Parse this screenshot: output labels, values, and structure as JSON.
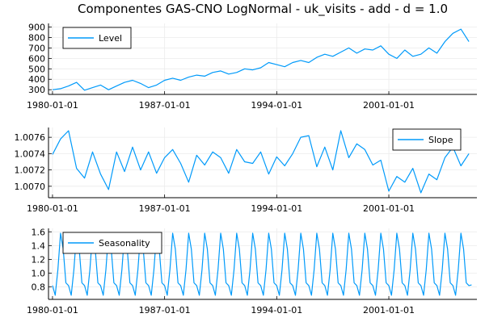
{
  "figure": {
    "title": "Componentes GAS-CNO LogNormal - uk_visits - add - d = 1.0"
  },
  "colors": {
    "line": "#009AFA",
    "grid": "#ebebeb",
    "axis": "#000000",
    "legend_border": "#000000"
  },
  "chart_data": [
    {
      "type": "line",
      "title": "Componentes GAS-CNO LogNormal - uk_visits - add - d = 1.0",
      "xlabel": "",
      "ylabel": "",
      "x_ticks": [
        "1980-01-01",
        "1987-01-01",
        "1994-01-01",
        "2001-01-01"
      ],
      "xlim": [
        1979.75,
        2006.5
      ],
      "y_ticks": [
        300,
        400,
        500,
        600,
        700,
        800,
        900
      ],
      "ylim": [
        255,
        935
      ],
      "grid": true,
      "legend": "top-left",
      "series": [
        {
          "name": "Level",
          "x": [
            1980.0,
            1980.5,
            1981.0,
            1981.5,
            1982.0,
            1982.5,
            1983.0,
            1983.5,
            1984.0,
            1984.5,
            1985.0,
            1985.5,
            1986.0,
            1986.5,
            1987.0,
            1987.5,
            1988.0,
            1988.5,
            1989.0,
            1989.5,
            1990.0,
            1990.5,
            1991.0,
            1991.5,
            1992.0,
            1992.5,
            1993.0,
            1993.5,
            1994.0,
            1994.5,
            1995.0,
            1995.5,
            1996.0,
            1996.5,
            1997.0,
            1997.5,
            1998.0,
            1998.5,
            1999.0,
            1999.5,
            2000.0,
            2000.5,
            2001.0,
            2001.5,
            2002.0,
            2002.5,
            2003.0,
            2003.5,
            2004.0,
            2004.5,
            2005.0,
            2005.5,
            2006.0
          ],
          "values": [
            300,
            310,
            335,
            370,
            295,
            320,
            345,
            300,
            335,
            370,
            390,
            360,
            320,
            345,
            390,
            410,
            390,
            420,
            440,
            430,
            465,
            480,
            450,
            465,
            500,
            490,
            510,
            560,
            540,
            520,
            560,
            580,
            560,
            610,
            640,
            620,
            660,
            700,
            650,
            690,
            680,
            720,
            640,
            600,
            680,
            620,
            640,
            700,
            650,
            760,
            840,
            880,
            760
          ]
        }
      ]
    },
    {
      "type": "line",
      "title": "",
      "xlabel": "",
      "ylabel": "",
      "x_ticks": [
        "1980-01-01",
        "1987-01-01",
        "1994-01-01",
        "2001-01-01"
      ],
      "xlim": [
        1979.75,
        2006.5
      ],
      "y_ticks": [
        1.007,
        1.0072,
        1.0074,
        1.0076
      ],
      "ylim": [
        1.00686,
        1.00772
      ],
      "grid": true,
      "legend": "top-right",
      "series": [
        {
          "name": "Slope",
          "x": [
            1980.0,
            1980.5,
            1981.0,
            1981.5,
            1982.0,
            1982.5,
            1983.0,
            1983.5,
            1984.0,
            1984.5,
            1985.0,
            1985.5,
            1986.0,
            1986.5,
            1987.0,
            1987.5,
            1988.0,
            1988.5,
            1989.0,
            1989.5,
            1990.0,
            1990.5,
            1991.0,
            1991.5,
            1992.0,
            1992.5,
            1993.0,
            1993.5,
            1994.0,
            1994.5,
            1995.0,
            1995.5,
            1996.0,
            1996.5,
            1997.0,
            1997.5,
            1998.0,
            1998.5,
            1999.0,
            1999.5,
            2000.0,
            2000.5,
            2001.0,
            2001.5,
            2002.0,
            2002.5,
            2003.0,
            2003.5,
            2004.0,
            2004.5,
            2005.0,
            2005.5,
            2006.0
          ],
          "values": [
            1.00739,
            1.00758,
            1.00768,
            1.00722,
            1.0071,
            1.00742,
            1.00715,
            1.00696,
            1.00742,
            1.00718,
            1.00748,
            1.0072,
            1.00742,
            1.00716,
            1.00735,
            1.00745,
            1.00728,
            1.00705,
            1.00738,
            1.00726,
            1.00742,
            1.00735,
            1.00716,
            1.00745,
            1.0073,
            1.00728,
            1.00742,
            1.00715,
            1.00736,
            1.00725,
            1.0074,
            1.0076,
            1.00762,
            1.00724,
            1.00748,
            1.0072,
            1.00768,
            1.00735,
            1.00752,
            1.00745,
            1.00726,
            1.00732,
            1.00694,
            1.00712,
            1.00705,
            1.00722,
            1.00692,
            1.00715,
            1.00708,
            1.00735,
            1.00748,
            1.00725,
            1.0074
          ]
        }
      ]
    },
    {
      "type": "line",
      "title": "",
      "xlabel": "",
      "ylabel": "",
      "x_ticks": [
        "1980-01-01",
        "1987-01-01",
        "1994-01-01",
        "2001-01-01"
      ],
      "xlim": [
        1979.75,
        2006.5
      ],
      "y_ticks": [
        0.8,
        1.0,
        1.2,
        1.4,
        1.6
      ],
      "ylim": [
        0.62,
        1.65
      ],
      "grid": true,
      "legend": "top-left",
      "series": [
        {
          "name": "Seasonality",
          "period": 1.0,
          "pattern": [
            0.82,
            0.68,
            1.05,
            1.58,
            1.35,
            0.86
          ],
          "x_start": 1980.0,
          "x_end": 2006.0,
          "final_value": 0.83
        }
      ]
    }
  ]
}
